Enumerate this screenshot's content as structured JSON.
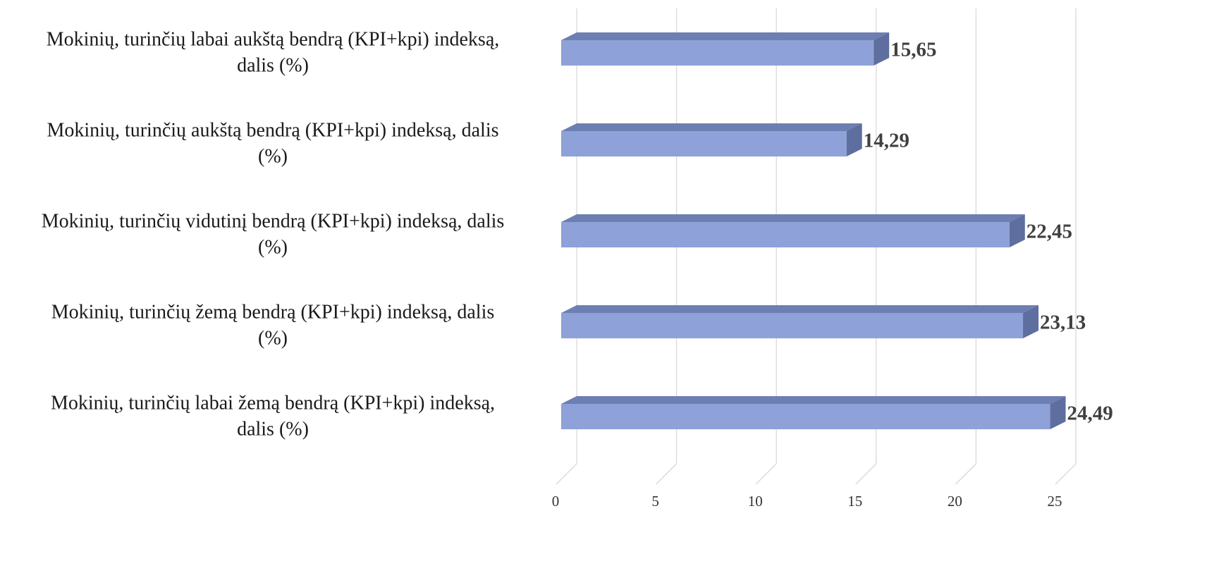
{
  "chart_data": {
    "type": "bar",
    "orientation": "horizontal",
    "style": "3d",
    "title": "",
    "xlabel": "",
    "ylabel": "",
    "xlim": [
      0,
      25
    ],
    "xticks": [
      0,
      5,
      10,
      15,
      20,
      25
    ],
    "grid": true,
    "legend": "none",
    "categories": [
      "Mokinių, turinčių labai aukštą bendrą (KPI+kpi) indeksą, dalis (%)",
      "Mokinių, turinčių aukštą bendrą (KPI+kpi) indeksą, dalis (%)",
      "Mokinių, turinčių vidutinį bendrą (KPI+kpi) indeksą, dalis (%)",
      "Mokinių, turinčių žemą bendrą (KPI+kpi) indeksą, dalis (%)",
      "Mokinių, turinčių labai žemą bendrą (KPI+kpi) indeksą, dalis (%)"
    ],
    "category_lines": [
      [
        "Mokinių, turinčių labai aukštą bendrą (KPI+kpi) indeksą,",
        "dalis (%)"
      ],
      [
        "Mokinių, turinčių aukštą bendrą (KPI+kpi) indeksą, dalis",
        "(%)"
      ],
      [
        "Mokinių, turinčių vidutinį bendrą (KPI+kpi) indeksą, dalis",
        "(%)"
      ],
      [
        "Mokinių, turinčių žemą bendrą (KPI+kpi) indeksą, dalis",
        "(%)"
      ],
      [
        "Mokinių, turinčių labai žemą bendrą (KPI+kpi) indeksą,",
        "dalis (%)"
      ]
    ],
    "values": [
      15.65,
      14.29,
      22.45,
      23.13,
      24.49
    ],
    "data_labels": [
      "15,65",
      "14,29",
      "22,45",
      "23,13",
      "24,49"
    ],
    "colors": {
      "bar_front": "#8EA1D8",
      "bar_top": "#6D7FB2",
      "bar_side": "#5D6E9F",
      "gridline": "#D9D9D9"
    }
  }
}
